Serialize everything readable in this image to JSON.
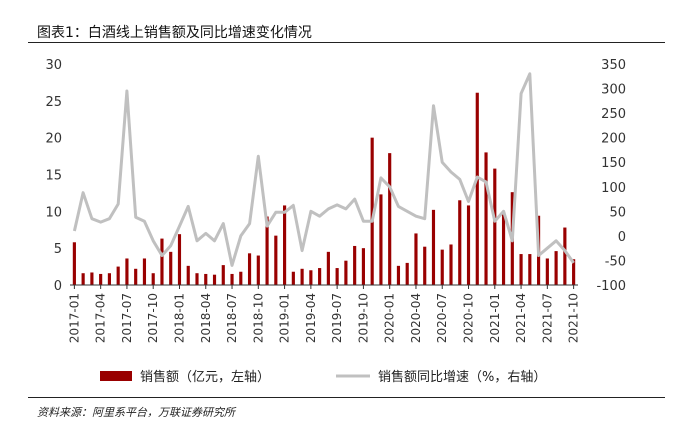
{
  "figure": {
    "title": "图表1：白酒线上销售额及同比增速变化情况",
    "source": "资料来源：阿里系平台，万联证券研究所"
  },
  "colors": {
    "bar": "#990000",
    "line": "#c0c0c0"
  },
  "chart_data": {
    "type": "bar+line",
    "categories": [
      "2017-01",
      "2017-02",
      "2017-03",
      "2017-04",
      "2017-05",
      "2017-06",
      "2017-07",
      "2017-08",
      "2017-09",
      "2017-10",
      "2017-11",
      "2017-12",
      "2018-01",
      "2018-02",
      "2018-03",
      "2018-04",
      "2018-05",
      "2018-06",
      "2018-07",
      "2018-08",
      "2018-09",
      "2018-10",
      "2018-11",
      "2018-12",
      "2019-01",
      "2019-02",
      "2019-03",
      "2019-04",
      "2019-05",
      "2019-06",
      "2019-07",
      "2019-08",
      "2019-09",
      "2019-10",
      "2019-11",
      "2019-12",
      "2020-01",
      "2020-02",
      "2020-03",
      "2020-04",
      "2020-05",
      "2020-06",
      "2020-07",
      "2020-08",
      "2020-09",
      "2020-10",
      "2020-11",
      "2020-12",
      "2021-01",
      "2021-02",
      "2021-03",
      "2021-04",
      "2021-05",
      "2021-06",
      "2021-07",
      "2021-08",
      "2021-09",
      "2021-10"
    ],
    "tick_labels": [
      "2017-01",
      "2017-04",
      "2017-07",
      "2017-10",
      "2018-01",
      "2018-04",
      "2018-07",
      "2018-10",
      "2019-01",
      "2019-04",
      "2019-07",
      "2019-10",
      "2020-01",
      "2020-04",
      "2020-07",
      "2020-10",
      "2021-01",
      "2021-04",
      "2021-07",
      "2021-10"
    ],
    "series": [
      {
        "name": "销售额（亿元，左轴）",
        "type": "bar",
        "axis": "left",
        "values": [
          5.8,
          1.6,
          1.7,
          1.5,
          1.6,
          2.5,
          3.6,
          2.2,
          3.6,
          1.6,
          6.3,
          4.5,
          6.9,
          2.6,
          1.6,
          1.5,
          1.4,
          2.7,
          1.5,
          1.8,
          4.3,
          4.0,
          9.3,
          6.7,
          10.8,
          1.8,
          2.2,
          2.0,
          2.3,
          4.5,
          2.3,
          3.3,
          5.3,
          5.0,
          20.0,
          12.3,
          17.9,
          2.6,
          3.0,
          7.0,
          5.2,
          10.2,
          4.8,
          5.5,
          11.5,
          10.8,
          26.1,
          18.0,
          15.8,
          9.9,
          12.6,
          4.2,
          4.2,
          9.4,
          3.6,
          4.6,
          7.8,
          3.5
        ]
      },
      {
        "name": "销售额同比增速（%，右轴）",
        "type": "line",
        "axis": "right",
        "values": [
          10,
          88,
          35,
          28,
          35,
          65,
          295,
          38,
          30,
          -10,
          -40,
          -20,
          20,
          60,
          -10,
          5,
          -10,
          25,
          -60,
          0,
          25,
          162,
          20,
          48,
          48,
          62,
          -30,
          50,
          40,
          55,
          63,
          55,
          75,
          30,
          30,
          118,
          100,
          60,
          50,
          40,
          35,
          265,
          150,
          130,
          115,
          70,
          120,
          110,
          30,
          50,
          -10,
          290,
          330,
          -40,
          -25,
          -10,
          -30,
          -55
        ]
      }
    ],
    "y_left": {
      "range": [
        0,
        30
      ],
      "ticks": [
        0,
        5,
        10,
        15,
        20,
        25,
        30
      ]
    },
    "y_right": {
      "range": [
        -100,
        350
      ],
      "ticks": [
        -100,
        -50,
        0,
        50,
        100,
        150,
        200,
        250,
        300,
        350
      ]
    },
    "legend": {
      "position": "bottom"
    },
    "grid": false
  }
}
